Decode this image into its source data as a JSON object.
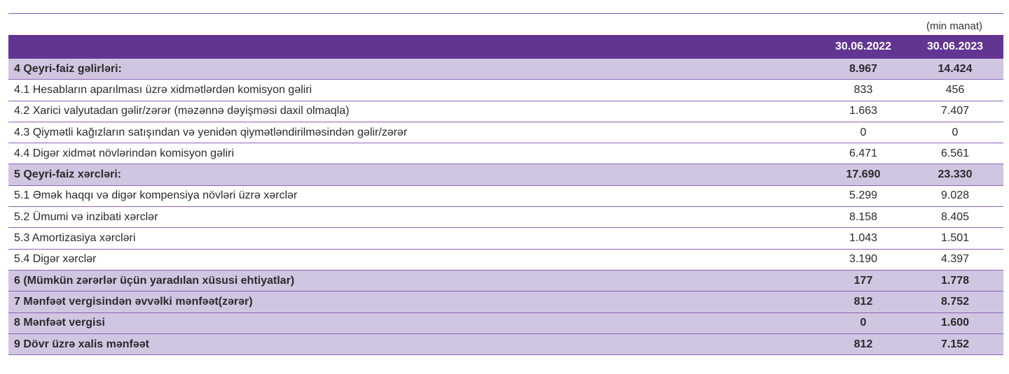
{
  "unit_label": "(min manat)",
  "columns": [
    "30.06.2022",
    "30.06.2023"
  ],
  "rows": [
    {
      "label": "4 Qeyri-faiz gəlirləri:",
      "v2022": "8.967",
      "v2023": "14.424",
      "bold": true
    },
    {
      "label": "4.1 Hesabların aparılması üzrə xidmətlərdən komisyon gəliri",
      "v2022": "833",
      "v2023": "456",
      "bold": false
    },
    {
      "label": "4.2 Xarici valyutadan gəlir/zərər (məzənnə dəyişməsi daxil olmaqla)",
      "v2022": "1.663",
      "v2023": "7.407",
      "bold": false
    },
    {
      "label": "4.3 Qiymətli kağızların satışından və yenidən qiymətləndirilməsindən gəlir/zərər",
      "v2022": "0",
      "v2023": "0",
      "bold": false
    },
    {
      "label": "4.4 Digər xidmət növlərindən komisyon gəliri",
      "v2022": "6.471",
      "v2023": "6.561",
      "bold": false
    },
    {
      "label": "5 Qeyri-faiz xərcləri:",
      "v2022": "17.690",
      "v2023": "23.330",
      "bold": true
    },
    {
      "label": "5.1 Əmək haqqı və digər kompensiya növləri üzrə xərclər",
      "v2022": "5.299",
      "v2023": "9.028",
      "bold": false
    },
    {
      "label": "5.2 Ümumi və inzibati xərclər",
      "v2022": "8.158",
      "v2023": "8.405",
      "bold": false
    },
    {
      "label": "5.3 Amortizasiya xərcləri",
      "v2022": "1.043",
      "v2023": "1.501",
      "bold": false
    },
    {
      "label": "5.4 Digər xərclər",
      "v2022": "3.190",
      "v2023": "4.397",
      "bold": false
    },
    {
      "label": "6 (Mümkün zərərlər üçün yaradılan xüsusi ehtiyatlar)",
      "v2022": "177",
      "v2023": "1.778",
      "bold": true
    },
    {
      "label": "7 Mənfəət vergisindən əvvəlki mənfəət(zərər)",
      "v2022": "812",
      "v2023": "8.752",
      "bold": true
    },
    {
      "label": "8 Mənfəət vergisi",
      "v2022": "0",
      "v2023": "1.600",
      "bold": true
    },
    {
      "label": "9 Dövr üzrə xalis mənfəət",
      "v2022": "812",
      "v2023": "7.152",
      "bold": true
    }
  ],
  "colors": {
    "header": "#623592",
    "bold_row": "#d1c6e2",
    "rule": "#8a63b8"
  }
}
